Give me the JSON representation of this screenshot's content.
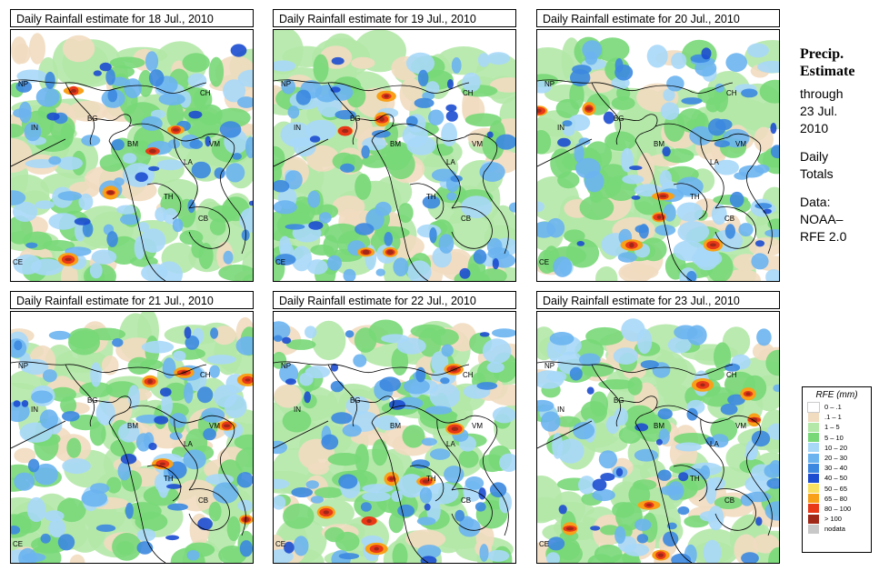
{
  "panels": [
    {
      "title": "Daily Rainfall estimate for  18 Jul., 2010",
      "variant": 0
    },
    {
      "title": "Daily Rainfall estimate for  19 Jul., 2010",
      "variant": 1
    },
    {
      "title": "Daily Rainfall estimate for  20 Jul., 2010",
      "variant": 2
    },
    {
      "title": "Daily Rainfall estimate for  21 Jul., 2010",
      "variant": 3
    },
    {
      "title": "Daily Rainfall estimate for  22 Jul., 2010",
      "variant": 4
    },
    {
      "title": "Daily Rainfall estimate for  23 Jul., 2010",
      "variant": 5
    }
  ],
  "map_labels": [
    "NP",
    "IN",
    "BG",
    "BM",
    "CH",
    "VM",
    "LA",
    "TH",
    "CB",
    "CE"
  ],
  "side": {
    "heading1": "Precip.",
    "heading2": "Estimate",
    "line1": "through",
    "line2": "23 Jul.",
    "line3": "2010",
    "line4": "Daily",
    "line5": "Totals",
    "line6": "Data:",
    "line7": "NOAA–",
    "line8": "RFE 2.0"
  },
  "legend": {
    "title": "RFE (mm)",
    "items": [
      {
        "label": "0 – .1",
        "color": "#ffffff"
      },
      {
        "label": ".1 – 1",
        "color": "#f1dcc0"
      },
      {
        "label": "1 – 5",
        "color": "#b4e8a8"
      },
      {
        "label": "5 – 10",
        "color": "#78d878"
      },
      {
        "label": "10 – 20",
        "color": "#a8d8f8"
      },
      {
        "label": "20 – 30",
        "color": "#6cb4f0"
      },
      {
        "label": "30 – 40",
        "color": "#3c88e0"
      },
      {
        "label": "40 – 50",
        "color": "#1c4cd0"
      },
      {
        "label": "50 – 65",
        "color": "#f8e060"
      },
      {
        "label": "65 – 80",
        "color": "#f8a018"
      },
      {
        "label": "80 – 100",
        "color": "#e83818"
      },
      {
        "label": "> 100",
        "color": "#a02818"
      },
      {
        "label": "nodata",
        "color": "#c8c8c8"
      }
    ]
  }
}
